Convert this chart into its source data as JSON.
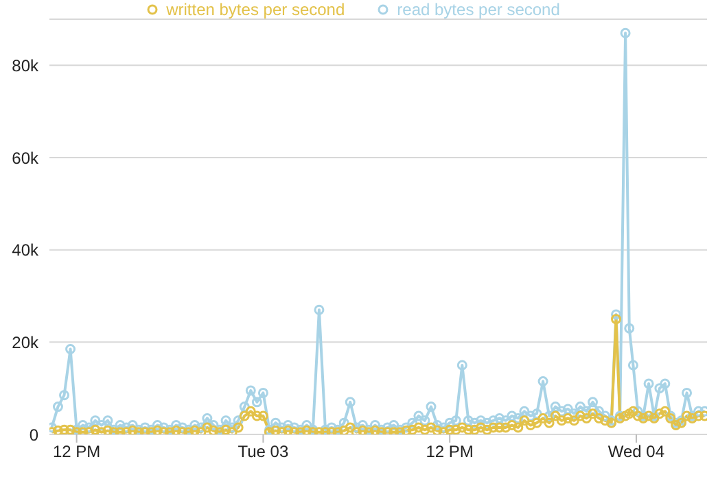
{
  "chart_data": {
    "type": "line",
    "x": [
      "--03-02T10:24",
      "--03-02T10:48",
      "--03-02T11:12",
      "--03-02T11:36",
      "--03-02T12:00",
      "--03-02T12:24",
      "--03-02T12:48",
      "--03-02T13:12",
      "--03-02T13:36",
      "--03-02T14:00",
      "--03-02T14:24",
      "--03-02T14:48",
      "--03-02T15:12",
      "--03-02T15:36",
      "--03-02T16:00",
      "--03-02T16:24",
      "--03-02T16:48",
      "--03-02T17:12",
      "--03-02T17:36",
      "--03-02T18:00",
      "--03-02T18:24",
      "--03-02T18:48",
      "--03-02T19:12",
      "--03-02T19:36",
      "--03-02T20:00",
      "--03-02T20:24",
      "--03-02T20:48",
      "--03-02T21:12",
      "--03-02T21:36",
      "--03-02T22:00",
      "--03-02T22:24",
      "--03-02T22:48",
      "--03-02T23:12",
      "--03-02T23:36",
      "--03-03T00:00",
      "--03-03T00:24",
      "--03-03T00:48",
      "--03-03T01:12",
      "--03-03T01:36",
      "--03-03T02:00",
      "--03-03T02:24",
      "--03-03T02:48",
      "--03-03T03:12",
      "--03-03T03:36",
      "--03-03T04:00",
      "--03-03T04:24",
      "--03-03T04:48",
      "--03-03T05:12",
      "--03-03T05:36",
      "--03-03T06:00",
      "--03-03T06:24",
      "--03-03T06:48",
      "--03-03T07:12",
      "--03-03T07:36",
      "--03-03T08:00",
      "--03-03T08:24",
      "--03-03T08:48",
      "--03-03T09:12",
      "--03-03T09:36",
      "--03-03T10:00",
      "--03-03T10:24",
      "--03-03T10:48",
      "--03-03T11:12",
      "--03-03T11:36",
      "--03-03T12:00",
      "--03-03T12:24",
      "--03-03T12:48",
      "--03-03T13:12",
      "--03-03T13:36",
      "--03-03T14:00",
      "--03-03T14:24",
      "--03-03T14:48",
      "--03-03T15:12",
      "--03-03T15:36",
      "--03-03T16:00",
      "--03-03T16:24",
      "--03-03T16:48",
      "--03-03T17:12",
      "--03-03T17:36",
      "--03-03T18:00",
      "--03-03T18:24",
      "--03-03T18:48",
      "--03-03T19:12",
      "--03-03T19:36",
      "--03-03T20:00",
      "--03-03T20:24",
      "--03-03T20:48",
      "--03-03T21:12",
      "--03-03T21:36",
      "--03-03T22:00",
      "--03-03T22:24",
      "--03-03T22:42",
      "--03-03T22:57",
      "--03-03T23:18",
      "--03-03T23:33",
      "--03-03T23:48",
      "--03-04T00:06",
      "--03-04T00:27",
      "--03-04T00:48",
      "--03-04T01:09",
      "--03-04T01:30",
      "--03-04T01:51",
      "--03-04T02:12",
      "--03-04T02:33",
      "--03-04T02:54",
      "--03-04T03:15",
      "--03-04T03:36",
      "--03-04T04:00",
      "--03-04T04:24"
    ],
    "series": [
      {
        "name": "written bytes per second",
        "color": "#e3c24a",
        "values": [
          500,
          800,
          1000,
          1000,
          500,
          500,
          500,
          1000,
          500,
          800,
          500,
          500,
          500,
          800,
          500,
          500,
          500,
          800,
          500,
          500,
          800,
          500,
          500,
          800,
          500,
          1500,
          800,
          500,
          1000,
          500,
          1500,
          4000,
          5000,
          4000,
          4000,
          500,
          800,
          500,
          800,
          500,
          500,
          800,
          500,
          500,
          500,
          500,
          500,
          800,
          1500,
          500,
          800,
          500,
          800,
          500,
          500,
          500,
          500,
          800,
          1000,
          1500,
          1000,
          1500,
          800,
          500,
          1000,
          1000,
          1500,
          1000,
          1000,
          1500,
          1000,
          1500,
          1500,
          1500,
          2000,
          1500,
          3000,
          2000,
          2500,
          3500,
          2500,
          4000,
          3000,
          3500,
          3000,
          4000,
          3500,
          4500,
          3500,
          3000,
          2500,
          25000,
          3500,
          4000,
          4500,
          5000,
          4000,
          3500,
          4000,
          3500,
          4500,
          5000,
          3500,
          2000,
          2500,
          4000,
          3500,
          4000,
          4000
        ]
      },
      {
        "name": "read bytes per second",
        "color": "#a8d3e6",
        "values": [
          1500,
          6000,
          8500,
          18500,
          1000,
          2000,
          1500,
          3000,
          2000,
          3000,
          1000,
          2000,
          1500,
          2000,
          1000,
          1500,
          1000,
          2000,
          1500,
          1000,
          2000,
          1500,
          1000,
          2000,
          1500,
          3500,
          2000,
          1000,
          3000,
          1500,
          3000,
          6000,
          9500,
          7000,
          9000,
          1000,
          2500,
          1500,
          2000,
          1500,
          1000,
          2000,
          1000,
          27000,
          1000,
          1500,
          1000,
          2500,
          7000,
          1500,
          2000,
          1000,
          2000,
          1000,
          1500,
          2000,
          1000,
          1500,
          2500,
          4000,
          3000,
          6000,
          2000,
          1500,
          2500,
          3000,
          15000,
          3000,
          2500,
          3000,
          2500,
          3000,
          3500,
          3000,
          4000,
          3500,
          5000,
          4000,
          4500,
          11500,
          4000,
          6000,
          5000,
          5500,
          4500,
          6000,
          5000,
          7000,
          5000,
          4000,
          3000,
          26000,
          4000,
          87000,
          23000,
          15000,
          5000,
          4000,
          11000,
          4000,
          10000,
          11000,
          4000,
          2500,
          3000,
          9000,
          4000,
          5000,
          5000
        ]
      }
    ],
    "xlim": [
      "--03-02T10:15",
      "--03-04T04:33"
    ],
    "xticks": [
      {
        "value": "--03-02T12:00",
        "label": "12 PM"
      },
      {
        "value": "--03-03T00:00",
        "label": "Tue 03"
      },
      {
        "value": "--03-03T12:00",
        "label": "12 PM"
      },
      {
        "value": "--03-04T00:00",
        "label": "Wed 04"
      }
    ],
    "ylim": [
      0,
      90000
    ],
    "yticks": [
      {
        "value": 0,
        "label": "0"
      },
      {
        "value": 20000,
        "label": "20k"
      },
      {
        "value": 40000,
        "label": "40k"
      },
      {
        "value": 60000,
        "label": "60k"
      },
      {
        "value": 80000,
        "label": "80k"
      }
    ],
    "grid": "y",
    "legend": "top",
    "marker": "circle",
    "line_style": "solid"
  }
}
